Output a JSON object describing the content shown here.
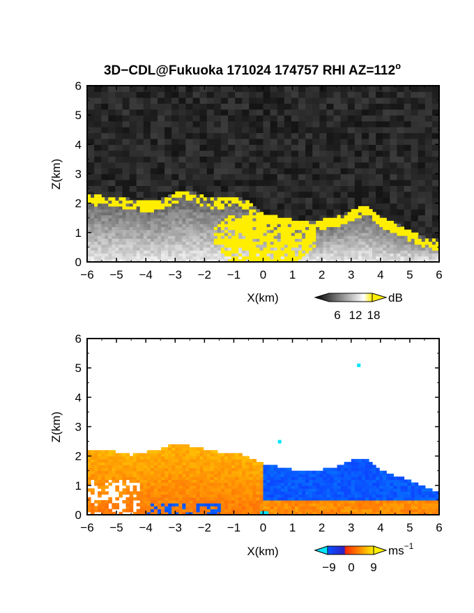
{
  "title": "3D−CDL@Fukuoka 171024 174757 RHI AZ=112",
  "title_superscript": "o",
  "chart_data": [
    {
      "type": "heatmap",
      "name": "backscatter",
      "xlabel": "X(km)",
      "ylabel": "Z(km)",
      "xlim": [
        -6,
        6
      ],
      "ylim": [
        0,
        6
      ],
      "x_ticks": [
        "−6",
        "−5",
        "−4",
        "−3",
        "−2",
        "−1",
        "0",
        "1",
        "2",
        "3",
        "4",
        "5",
        "6"
      ],
      "y_ticks": [
        "0",
        "1",
        "2",
        "3",
        "4",
        "5",
        "6"
      ],
      "colorbar": {
        "unit": "dB",
        "ticks": [
          "6",
          "12",
          "18"
        ],
        "range": [
          0,
          21
        ],
        "colormap": "grayscale-yellow"
      },
      "background_color": "#1e1e1e",
      "echo_top_km": [
        [
          -6,
          2.3
        ],
        [
          -5.5,
          2.2
        ],
        [
          -5,
          2.2
        ],
        [
          -4.5,
          2.1
        ],
        [
          -4,
          2.0
        ],
        [
          -3.5,
          2.1
        ],
        [
          -3,
          2.3
        ],
        [
          -2.5,
          2.4
        ],
        [
          -2,
          2.2
        ],
        [
          -1.5,
          2.1
        ],
        [
          -1,
          2.2
        ],
        [
          -0.5,
          2.0
        ],
        [
          0,
          1.6
        ],
        [
          0.5,
          1.5
        ],
        [
          1,
          1.4
        ],
        [
          1.5,
          1.4
        ],
        [
          2,
          1.4
        ],
        [
          2.5,
          1.5
        ],
        [
          3,
          1.7
        ],
        [
          3.5,
          1.9
        ],
        [
          4,
          1.5
        ],
        [
          4.5,
          1.3
        ],
        [
          5,
          1.0
        ],
        [
          5.5,
          0.8
        ],
        [
          6,
          0.7
        ]
      ],
      "saturated_region_color": "#ffee00"
    },
    {
      "type": "heatmap",
      "name": "radial-velocity",
      "xlabel": "X(km)",
      "ylabel": "Z(km)",
      "xlim": [
        -6,
        6
      ],
      "ylim": [
        0,
        6
      ],
      "x_ticks": [
        "−6",
        "−5",
        "−4",
        "−3",
        "−2",
        "−1",
        "0",
        "1",
        "2",
        "3",
        "4",
        "5",
        "6"
      ],
      "y_ticks": [
        "0",
        "1",
        "2",
        "3",
        "4",
        "5",
        "6"
      ],
      "colorbar": {
        "unit": "ms",
        "unit_superscript": "−1",
        "ticks": [
          "−9",
          "0",
          "9"
        ],
        "range": [
          -12,
          12
        ],
        "colormap": "blue-red-yellow"
      },
      "echo_top_km": [
        [
          -6,
          2.2
        ],
        [
          -5.5,
          2.2
        ],
        [
          -5,
          2.1
        ],
        [
          -4.5,
          2.0
        ],
        [
          -4,
          2.1
        ],
        [
          -3.5,
          2.2
        ],
        [
          -3,
          2.4
        ],
        [
          -2.5,
          2.3
        ],
        [
          -2,
          2.2
        ],
        [
          -1.5,
          2.1
        ],
        [
          -1,
          2.1
        ],
        [
          -0.5,
          1.9
        ],
        [
          0,
          1.7
        ],
        [
          0.5,
          1.6
        ],
        [
          1,
          1.5
        ],
        [
          1.5,
          1.5
        ],
        [
          2,
          1.5
        ],
        [
          2.5,
          1.6
        ],
        [
          3,
          1.8
        ],
        [
          3.5,
          1.9
        ],
        [
          4,
          1.5
        ],
        [
          4.5,
          1.3
        ],
        [
          5,
          1.1
        ],
        [
          5.5,
          0.9
        ],
        [
          6,
          0.7
        ]
      ],
      "velocity_ms": {
        "left_upper": 8,
        "left_lower": 5,
        "right_upper": -6,
        "right_lower": 6,
        "sign_change_x_km": 0
      },
      "isolated_echoes_km": [
        [
          3.25,
          5.1
        ],
        [
          0.55,
          2.5
        ]
      ]
    }
  ]
}
